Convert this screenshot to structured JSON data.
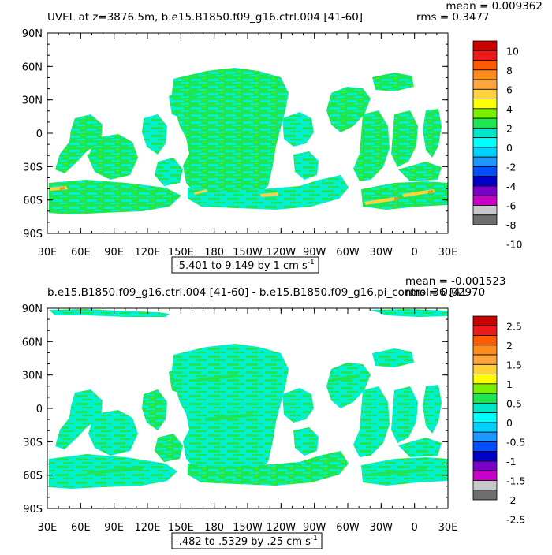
{
  "panels": [
    {
      "title": "UVEL at z=3876.5m, b.e15.B1850.f09_g16.ctrl.004 [41-60]",
      "mean_label": "mean = 0.009362",
      "rms_label": "rms = 0.3477",
      "range_label": "-5.401 to 9.149 by 1 cm s",
      "range_exp": "-1",
      "colorbar": {
        "labels": [
          "10",
          "8",
          "6",
          "4",
          "2",
          "0",
          "-2",
          "-4",
          "-6",
          "-8",
          "-10"
        ],
        "colors": [
          "#c80000",
          "#ee1a1a",
          "#ff5a00",
          "#ff8c1a",
          "#ffa53c",
          "#ffd23c",
          "#ffff00",
          "#78f000",
          "#1ee650",
          "#00e6c8",
          "#00ffff",
          "#00d2ff",
          "#1e96ff",
          "#0050ff",
          "#0000c8",
          "#7800c8",
          "#c800c8",
          "#c8c8c8",
          "#6e6e6e"
        ]
      }
    },
    {
      "title": "b.e15.B1850.f09_g16.ctrl.004 [41-60] - b.e15.B1850.f09_g16.pi_control.36 [41-",
      "mean_label": "mean = -0.001523",
      "rms_label": "rms = 0.02970",
      "range_label": "-.482 to .5329 by .25 cm s",
      "range_exp": "-1",
      "colorbar": {
        "labels": [
          "2.5",
          "2",
          "1.5",
          "1",
          "0.5",
          "0",
          "-0.5",
          "-1",
          "-1.5",
          "-2",
          "-2.5"
        ],
        "colors": [
          "#c80000",
          "#ee1a1a",
          "#ff5a00",
          "#ff8c1a",
          "#ffa53c",
          "#ffd23c",
          "#ffff00",
          "#78f000",
          "#1ee650",
          "#00e6c8",
          "#00ffff",
          "#00d2ff",
          "#1e96ff",
          "#0050ff",
          "#0000c8",
          "#7800c8",
          "#c800c8",
          "#c8c8c8",
          "#6e6e6e"
        ]
      }
    }
  ],
  "chart_data": [
    {
      "type": "heatmap",
      "title": "UVEL at z=3876.5m, b.e15.B1850.f09_g16.ctrl.004 [41-60]",
      "map_projection": "cylindrical equidistant, 30E to 30E",
      "x_ticks": [
        "30E",
        "60E",
        "90E",
        "120E",
        "150E",
        "180",
        "150W",
        "120W",
        "90W",
        "60W",
        "30W",
        "0",
        "30E"
      ],
      "y_ticks": [
        "90N",
        "60N",
        "30N",
        "0",
        "30S",
        "60S",
        "90S"
      ],
      "xlim": [
        30,
        390
      ],
      "ylim": [
        -90,
        90
      ],
      "color_levels": [
        -10,
        -8,
        -6,
        -4,
        -2,
        0,
        2,
        4,
        6,
        8,
        10
      ],
      "stats": {
        "mean": 0.009362,
        "rms": 0.3477,
        "min": -5.401,
        "max": 9.149,
        "contour_interval": 1,
        "units": "cm s-1"
      }
    },
    {
      "type": "heatmap",
      "title": "b.e15.B1850.f09_g16.ctrl.004 [41-60] - b.e15.B1850.f09_g16.pi_control.36 [41-",
      "map_projection": "cylindrical equidistant, 30E to 30E",
      "x_ticks": [
        "30E",
        "60E",
        "90E",
        "120E",
        "150E",
        "180",
        "150W",
        "120W",
        "90W",
        "60W",
        "30W",
        "0",
        "30E"
      ],
      "y_ticks": [
        "90N",
        "60N",
        "30N",
        "0",
        "30S",
        "60S",
        "90S"
      ],
      "xlim": [
        30,
        390
      ],
      "ylim": [
        -90,
        90
      ],
      "color_levels": [
        -2.5,
        -2,
        -1.5,
        -1,
        -0.5,
        0,
        0.5,
        1,
        1.5,
        2,
        2.5
      ],
      "stats": {
        "mean": -0.001523,
        "rms": 0.0297,
        "min": -0.482,
        "max": 0.5329,
        "contour_interval": 0.25,
        "units": "cm s-1"
      }
    }
  ]
}
